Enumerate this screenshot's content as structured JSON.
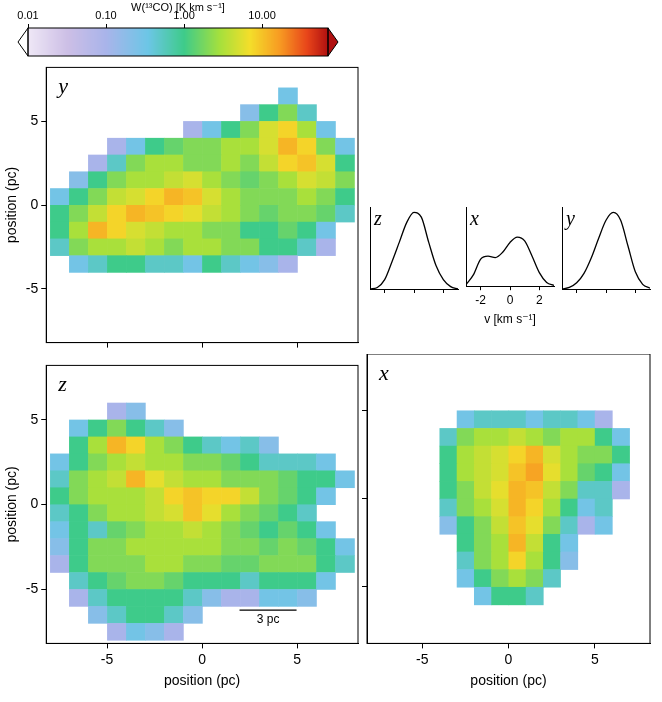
{
  "colorbar": {
    "label": "W(¹³CO) [K km s⁻¹]",
    "lim": [
      0.01,
      70
    ],
    "log": true,
    "ticks": [
      0.01,
      {
        "value": 0.1,
        "label": "0.10"
      },
      {
        "value": 1,
        "label": "1.00"
      },
      {
        "value": 10,
        "label": "10.00"
      }
    ]
  },
  "chart_data": [
    {
      "type": "heatmap",
      "title": "y",
      "ylabel": "position (pc)",
      "tick_labels": "y",
      "xlim": [
        -8.2,
        8.2
      ],
      "ylim": [
        -8.2,
        8.2
      ],
      "xticks": [
        -5,
        0,
        5
      ],
      "yticks": [
        -5,
        0,
        5
      ],
      "x": [
        -7.5,
        -6.5,
        -5.5,
        -4.5,
        -3.5,
        -2.5,
        -1.5,
        -0.5,
        0.5,
        1.5,
        2.5,
        3.5,
        4.5,
        5.5,
        6.5,
        7.5
      ],
      "y": [
        7.5,
        6.5,
        5.5,
        4.5,
        3.5,
        2.5,
        1.5,
        0.5,
        -0.5,
        -1.5,
        -2.5,
        -3.5,
        -4.5,
        -5.5,
        -6.5,
        -7.5
      ],
      "cells": [
        [
          0,
          0,
          0,
          0,
          0,
          0,
          0,
          0,
          0,
          0,
          0,
          0,
          0,
          0,
          0,
          0
        ],
        [
          0,
          0,
          0,
          0,
          0,
          0,
          0,
          0,
          0,
          0,
          0,
          0,
          0.3,
          0,
          0,
          0
        ],
        [
          0,
          0,
          0,
          0,
          0,
          0,
          0,
          0,
          0,
          0,
          0.2,
          1,
          2,
          0.5,
          0,
          0
        ],
        [
          0,
          0,
          0,
          0,
          0,
          0,
          0,
          0.1,
          0.3,
          1,
          2,
          5,
          8,
          3,
          0.3,
          0
        ],
        [
          0,
          0,
          0,
          0.1,
          0.3,
          1,
          1.5,
          2,
          2,
          3,
          3,
          5,
          12,
          8,
          2,
          0.3
        ],
        [
          0,
          0,
          0.1,
          0.5,
          2,
          3,
          3,
          2,
          2,
          3,
          2,
          4,
          8,
          10,
          5,
          1
        ],
        [
          0,
          0.2,
          1,
          2,
          3,
          3,
          4,
          5,
          3,
          2,
          1.5,
          2,
          3,
          5,
          4,
          2
        ],
        [
          0.3,
          1,
          2,
          4,
          5,
          8,
          12,
          10,
          5,
          3,
          2,
          2,
          2,
          3,
          2,
          1
        ],
        [
          1,
          2,
          4,
          8,
          12,
          10,
          8,
          6,
          4,
          3,
          2,
          1.5,
          2,
          2,
          1.5,
          0.5
        ],
        [
          1,
          3,
          12,
          8,
          5,
          4,
          3,
          3,
          2,
          2,
          1,
          1,
          1.5,
          1,
          0.3,
          0
        ],
        [
          0.5,
          2,
          3,
          3,
          4,
          3,
          2,
          3,
          3,
          2,
          2,
          1,
          1,
          0.5,
          0.1,
          0
        ],
        [
          0,
          0.3,
          0.5,
          1,
          1,
          0.5,
          0.5,
          0.3,
          1,
          0.5,
          0.3,
          0.2,
          0.1,
          0,
          0,
          0
        ],
        [
          0,
          0,
          0,
          0,
          0,
          0,
          0,
          0,
          0,
          0,
          0,
          0,
          0,
          0,
          0,
          0
        ],
        [
          0,
          0,
          0,
          0,
          0,
          0,
          0,
          0,
          0,
          0,
          0,
          0,
          0,
          0,
          0,
          0
        ],
        [
          0,
          0,
          0,
          0,
          0,
          0,
          0,
          0,
          0,
          0,
          0,
          0,
          0,
          0,
          0,
          0
        ],
        [
          0,
          0,
          0,
          0,
          0,
          0,
          0,
          0,
          0,
          0,
          0,
          0,
          0,
          0,
          0,
          0
        ]
      ]
    },
    {
      "type": "heatmap",
      "title": "z",
      "xlabel": "position (pc)",
      "ylabel": "position (pc)",
      "xlim": [
        -8.2,
        8.2
      ],
      "ylim": [
        -8.2,
        8.2
      ],
      "xticks": [
        -5,
        0,
        5
      ],
      "yticks": [
        -5,
        0,
        5
      ],
      "scale_bar": {
        "label": "3 pc",
        "length": 3
      },
      "x": [
        -7.5,
        -6.5,
        -5.5,
        -4.5,
        -3.5,
        -2.5,
        -1.5,
        -0.5,
        0.5,
        1.5,
        2.5,
        3.5,
        4.5,
        5.5,
        6.5,
        7.5
      ],
      "y": [
        7.5,
        6.5,
        5.5,
        4.5,
        3.5,
        2.5,
        1.5,
        0.5,
        -0.5,
        -1.5,
        -2.5,
        -3.5,
        -4.5,
        -5.5,
        -6.5,
        -7.5
      ],
      "cells": [
        [
          0,
          0,
          0,
          0,
          0,
          0,
          0,
          0,
          0,
          0,
          0,
          0,
          0,
          0,
          0,
          0
        ],
        [
          0,
          0,
          0,
          0,
          0,
          0,
          0,
          0,
          0,
          0,
          0,
          0,
          0,
          0,
          0,
          0
        ],
        [
          0,
          0,
          0,
          0.1,
          0.2,
          0,
          0,
          0,
          0,
          0,
          0,
          0,
          0,
          0,
          0,
          0
        ],
        [
          0,
          0.3,
          1,
          2,
          1,
          0.5,
          0.2,
          0,
          0,
          0,
          0,
          0,
          0,
          0,
          0,
          0
        ],
        [
          0,
          1,
          3,
          12,
          8,
          3,
          2,
          1,
          0.5,
          0.3,
          0.5,
          0.2,
          0,
          0,
          0,
          0
        ],
        [
          0.3,
          1,
          2,
          3,
          4,
          3,
          3,
          2,
          2,
          1.5,
          1,
          0.5,
          0.5,
          0.5,
          0.3,
          0
        ],
        [
          0.5,
          2,
          3,
          4,
          12,
          6,
          4,
          3,
          3,
          2,
          2,
          2,
          1.5,
          1,
          1,
          0.3
        ],
        [
          1,
          2,
          3,
          3,
          3,
          4,
          8,
          10,
          8,
          8,
          4,
          2,
          1.5,
          1,
          0.3,
          0
        ],
        [
          0.5,
          1,
          2,
          3,
          3,
          4,
          5,
          10,
          6,
          3,
          2,
          1.5,
          1,
          0.5,
          0,
          0
        ],
        [
          0.3,
          1,
          0.5,
          1.5,
          2,
          3,
          3,
          4,
          3,
          2,
          1.5,
          1,
          1.5,
          1,
          0.3,
          0
        ],
        [
          0.2,
          1,
          2,
          2,
          3,
          3,
          3,
          3,
          3,
          2,
          2,
          1.5,
          2,
          1.5,
          1,
          0.3
        ],
        [
          0.1,
          1,
          2,
          2,
          2,
          3,
          3,
          2,
          2,
          1.5,
          1.5,
          2,
          2,
          2,
          1,
          0.5
        ],
        [
          0,
          0.5,
          1,
          1.5,
          2,
          2,
          1.5,
          1,
          1,
          1,
          0.5,
          1,
          1,
          1,
          0.3,
          0
        ],
        [
          0,
          0.1,
          0.5,
          1,
          1,
          1,
          1,
          0.5,
          0.2,
          0.1,
          0.1,
          0.3,
          0.3,
          0.2,
          0,
          0
        ],
        [
          0,
          0,
          0.2,
          0.5,
          1,
          1,
          0.5,
          0.2,
          0,
          0,
          0,
          0,
          0,
          0,
          0,
          0
        ],
        [
          0,
          0,
          0,
          0.1,
          0.3,
          0.2,
          0.1,
          0,
          0,
          0,
          0,
          0,
          0,
          0,
          0,
          0
        ]
      ]
    },
    {
      "type": "heatmap",
      "title": "x",
      "xlabel": "position (pc)",
      "tick_labels": "x",
      "xlim": [
        -8.2,
        8.2
      ],
      "ylim": [
        -8.2,
        8.2
      ],
      "xticks": [
        -5,
        0,
        5
      ],
      "yticks": [
        -5,
        0,
        5
      ],
      "x": [
        -7.5,
        -6.5,
        -5.5,
        -4.5,
        -3.5,
        -2.5,
        -1.5,
        -0.5,
        0.5,
        1.5,
        2.5,
        3.5,
        4.5,
        5.5,
        6.5,
        7.5
      ],
      "y": [
        7.5,
        6.5,
        5.5,
        4.5,
        3.5,
        2.5,
        1.5,
        0.5,
        -0.5,
        -1.5,
        -2.5,
        -3.5,
        -4.5,
        -5.5,
        -6.5,
        -7.5
      ],
      "cells": [
        [
          0,
          0,
          0,
          0,
          0,
          0,
          0,
          0,
          0,
          0,
          0,
          0,
          0,
          0,
          0,
          0
        ],
        [
          0,
          0,
          0,
          0,
          0,
          0,
          0,
          0,
          0,
          0,
          0,
          0,
          0,
          0,
          0,
          0
        ],
        [
          0,
          0,
          0,
          0,
          0,
          0,
          0,
          0,
          0,
          0,
          0,
          0,
          0,
          0,
          0,
          0
        ],
        [
          0,
          0,
          0,
          0,
          0,
          0.3,
          0.5,
          0.5,
          0.5,
          0.3,
          0.5,
          0.5,
          0.3,
          0.1,
          0,
          0
        ],
        [
          0,
          0,
          0,
          0,
          0.5,
          2,
          3,
          3,
          4,
          3,
          2,
          3,
          3,
          1,
          0.3,
          0
        ],
        [
          0,
          0,
          0,
          0,
          1,
          3,
          4,
          5,
          8,
          12,
          5,
          3,
          2,
          2,
          1,
          0
        ],
        [
          0,
          0,
          0,
          0,
          1,
          3,
          4,
          5,
          10,
          15,
          6,
          3,
          1.5,
          1,
          0.3,
          0
        ],
        [
          0,
          0,
          0,
          0,
          1,
          2,
          4,
          6,
          12,
          10,
          4,
          2,
          0.5,
          0.5,
          0.1,
          0
        ],
        [
          0,
          0,
          0,
          0,
          0.5,
          2,
          3,
          5,
          12,
          8,
          3,
          1,
          0.3,
          0.5,
          0,
          0
        ],
        [
          0,
          0,
          0,
          0,
          0.2,
          1,
          2,
          4,
          10,
          6,
          2,
          0.5,
          0.1,
          0.3,
          0,
          0
        ],
        [
          0,
          0,
          0,
          0,
          0,
          1,
          2,
          3,
          12,
          4,
          1,
          0.3,
          0,
          0,
          0,
          0
        ],
        [
          0,
          0,
          0,
          0,
          0,
          0.5,
          2,
          3,
          8,
          3,
          1,
          0.2,
          0,
          0,
          0,
          0
        ],
        [
          0,
          0,
          0,
          0,
          0,
          0.3,
          1,
          2,
          3,
          2,
          0.5,
          0,
          0,
          0,
          0,
          0
        ],
        [
          0,
          0,
          0,
          0,
          0,
          0,
          0.3,
          1,
          1,
          0.5,
          0,
          0,
          0,
          0,
          0,
          0
        ],
        [
          0,
          0,
          0,
          0,
          0,
          0,
          0,
          0,
          0,
          0,
          0,
          0,
          0,
          0,
          0,
          0
        ],
        [
          0,
          0,
          0,
          0,
          0,
          0,
          0,
          0,
          0,
          0,
          0,
          0,
          0,
          0,
          0,
          0
        ]
      ]
    },
    {
      "type": "line",
      "title": "z",
      "tick_labels": false,
      "xlim": [
        -3,
        3
      ],
      "ylim": [
        0,
        1.05
      ],
      "xticks": [
        -2,
        0,
        2
      ],
      "x": [
        -3,
        -2.5,
        -2,
        -1.5,
        -1,
        -0.5,
        0,
        0.5,
        1,
        1.5,
        2,
        2.5,
        3
      ],
      "values": [
        0,
        0.02,
        0.12,
        0.35,
        0.6,
        0.85,
        0.98,
        0.92,
        0.6,
        0.3,
        0.12,
        0.03,
        0
      ]
    },
    {
      "type": "line",
      "title": "x",
      "xlabel": "v [km s⁻¹]",
      "tick_labels": "x",
      "xlim": [
        -3,
        3
      ],
      "ylim": [
        0,
        1.05
      ],
      "xticks": [
        -2,
        0,
        2
      ],
      "x": [
        -3,
        -2.5,
        -2,
        -1.5,
        -1,
        -0.5,
        0,
        0.5,
        1,
        1.5,
        2,
        2.5,
        3
      ],
      "values": [
        0.02,
        0.15,
        0.36,
        0.4,
        0.38,
        0.45,
        0.58,
        0.65,
        0.6,
        0.4,
        0.18,
        0.05,
        0.01
      ]
    },
    {
      "type": "line",
      "title": "y",
      "tick_labels": false,
      "xlim": [
        -3,
        3
      ],
      "ylim": [
        0,
        1.05
      ],
      "xticks": [
        -2,
        0,
        2
      ],
      "x": [
        -3,
        -2.5,
        -2,
        -1.5,
        -1,
        -0.5,
        0,
        0.5,
        1,
        1.5,
        2,
        2.5,
        3
      ],
      "values": [
        0,
        0.02,
        0.08,
        0.2,
        0.4,
        0.65,
        0.88,
        0.98,
        0.88,
        0.55,
        0.22,
        0.06,
        0.01
      ]
    }
  ]
}
